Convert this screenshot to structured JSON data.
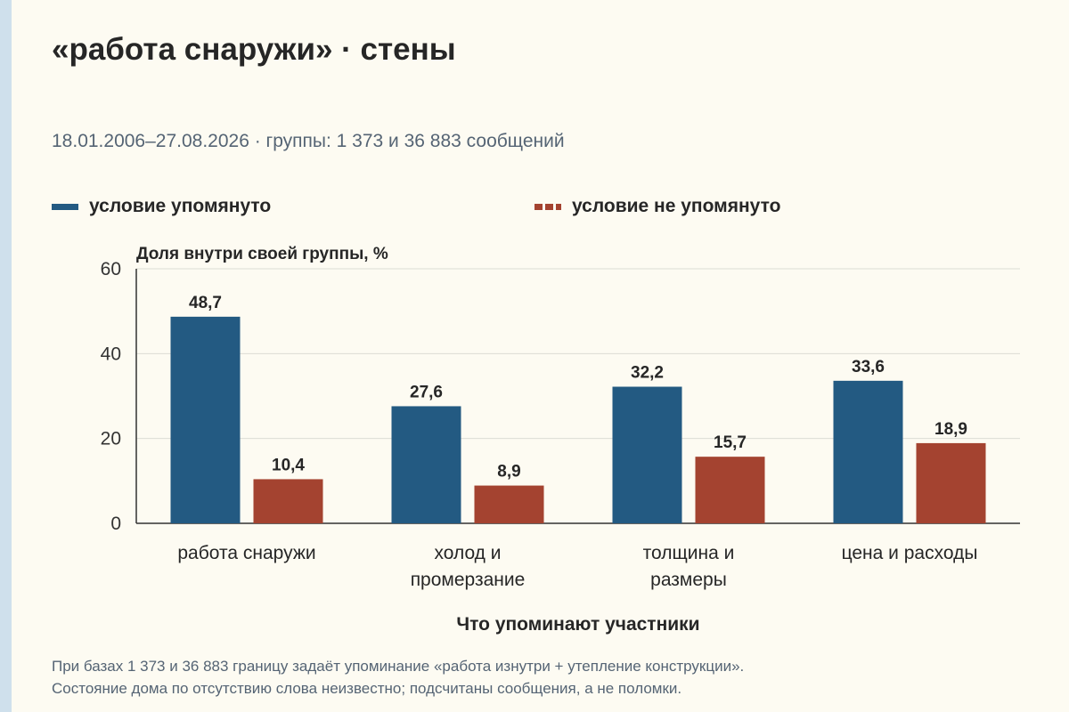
{
  "title": "«работа снаружи» · стены",
  "subtitle": "18.01.2006–27.08.2026 · группы: 1 373 и 36 883 сообщений",
  "footnote": [
    "При базах 1 373 и 36 883 границу задаёт упоминание «работа изнутри + утепление конструкции».",
    "Состояние дома по отсутствию слова неизвестно; подсчитаны сообщения, а не поломки."
  ],
  "colors": {
    "mentioned": "#235a82",
    "not_mentioned": "#a44330",
    "grid": "#dcdcd4",
    "background": "#fdfbf2"
  },
  "chart_data": {
    "type": "bar",
    "ylabel": "Доля внутри своей группы, %",
    "xlabel": "Что упоминают участники",
    "ylim": [
      0,
      60
    ],
    "yticks": [
      0,
      20,
      40,
      60
    ],
    "grid": true,
    "legend_position": "top",
    "categories": [
      [
        "работа снаружи"
      ],
      [
        "холод и",
        "промерзание"
      ],
      [
        "толщина и",
        "размеры"
      ],
      [
        "цена и расходы"
      ]
    ],
    "series": [
      {
        "name": "условие упомянуто",
        "style": "solid",
        "values": [
          48.7,
          27.6,
          32.2,
          33.6
        ],
        "labels": [
          "48,7",
          "27,6",
          "32,2",
          "33,6"
        ]
      },
      {
        "name": "условие не упомянуто",
        "style": "dashed",
        "values": [
          10.4,
          8.9,
          15.7,
          18.9
        ],
        "labels": [
          "10,4",
          "8,9",
          "15,7",
          "18,9"
        ]
      }
    ]
  }
}
